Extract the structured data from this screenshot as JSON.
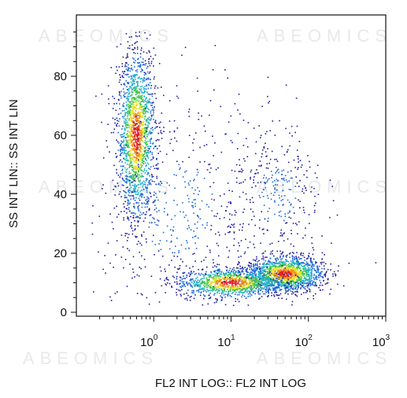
{
  "watermark_text": "ABEOMICS",
  "chart_data": {
    "type": "scatter",
    "style": "density-colored dot plot (flow cytometry)",
    "xlabel": "FL2 INT LOG:: FL2 INT LOG",
    "ylabel": "SS INT LIN:: SS INT LIN",
    "x_scale": "log",
    "xlim": [
      0.1,
      1000
    ],
    "ylim": [
      0,
      100
    ],
    "x_ticks": [
      {
        "value": 1,
        "base": "10",
        "exp": "0"
      },
      {
        "value": 10,
        "base": "10",
        "exp": "1"
      },
      {
        "value": 100,
        "base": "10",
        "exp": "2"
      },
      {
        "value": 1000,
        "base": "10",
        "exp": "3"
      }
    ],
    "y_ticks": [
      0,
      20,
      40,
      60,
      80
    ],
    "density_colors": [
      "#1e1e9e",
      "#1f6ad8",
      "#1fb0c8",
      "#3cc24a",
      "#e6e020",
      "#f08a1a",
      "#e01e1e"
    ],
    "populations": [
      {
        "x_center": 0.6,
        "y_center": 60,
        "x_spread_decades": 0.12,
        "y_spread": 14,
        "relative_size": 0.34
      },
      {
        "x_center": 50,
        "y_center": 13,
        "x_spread_decades": 0.25,
        "y_spread": 3,
        "relative_size": 0.28
      },
      {
        "x_center": 10,
        "y_center": 10,
        "x_spread_decades": 0.35,
        "y_spread": 2.5,
        "relative_size": 0.22
      },
      {
        "x_center": 40,
        "y_center": 40,
        "x_spread_decades": 0.3,
        "y_spread": 12,
        "relative_size": 0.06
      },
      {
        "x_center": 2,
        "y_center": 35,
        "x_spread_decades": 0.6,
        "y_spread": 20,
        "relative_size": 0.1
      }
    ]
  }
}
